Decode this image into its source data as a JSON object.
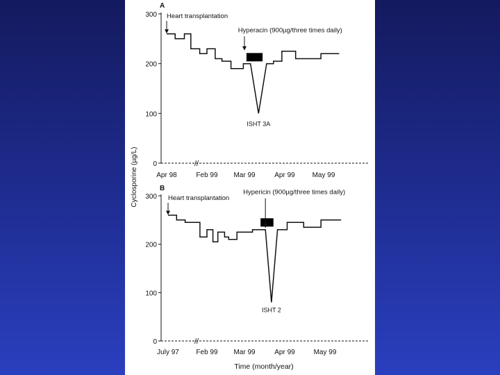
{
  "figure": {
    "y_axis_label": "Cyclosporine (µg/L)",
    "x_axis_label": "Time (month/year)"
  },
  "chart_data": [
    {
      "type": "line",
      "panel_label": "A",
      "categories": [
        "Apr 98",
        "Feb 99",
        "Mar 99",
        "Apr 99",
        "May 99"
      ],
      "axis_break": "//",
      "yticks": [
        0,
        100,
        200,
        300
      ],
      "ylim": [
        0,
        300
      ],
      "ylabel": "Cyclosporine (µg/L)",
      "xlabel": "Time (month/year)",
      "series": [
        {
          "points": [
            [
              0.0,
              260
            ],
            [
              0.21,
              260
            ],
            [
              0.21,
              250
            ],
            [
              0.44,
              250
            ],
            [
              0.44,
              260
            ],
            [
              0.6,
              260
            ],
            [
              0.6,
              230
            ],
            [
              0.82,
              230
            ],
            [
              0.82,
              220
            ],
            [
              1.0,
              220
            ],
            [
              1.0,
              230
            ],
            [
              1.22,
              230
            ],
            [
              1.22,
              210
            ],
            [
              1.4,
              210
            ],
            [
              1.4,
              205
            ],
            [
              1.64,
              205
            ],
            [
              1.64,
              190
            ],
            [
              1.97,
              190
            ],
            [
              1.97,
              200
            ],
            [
              2.15,
              200
            ],
            [
              2.35,
              100
            ],
            [
              2.55,
              200
            ],
            [
              2.72,
              200
            ],
            [
              2.72,
              205
            ],
            [
              2.93,
              205
            ],
            [
              2.93,
              225
            ],
            [
              3.28,
              225
            ],
            [
              3.28,
              210
            ],
            [
              3.93,
              210
            ],
            [
              3.93,
              220
            ],
            [
              4.4,
              220
            ]
          ]
        }
      ],
      "annotations": [
        {
          "text": "Heart transplantation",
          "at": [
            0.0,
            300
          ]
        },
        {
          "text": "Hyperacin (900µg/three times daily)",
          "at": [
            2.15,
            255
          ]
        },
        {
          "text": "ISHT 3A",
          "at": [
            2.35,
            80
          ]
        }
      ],
      "treatment_bar": {
        "x_start": 2.05,
        "x_end": 2.45,
        "y": 213
      }
    },
    {
      "type": "line",
      "panel_label": "B",
      "categories": [
        "July 97",
        "Feb 99",
        "Mar 99",
        "Apr 99",
        "May 99"
      ],
      "axis_break": "//",
      "yticks": [
        0,
        100,
        200,
        300
      ],
      "ylim": [
        0,
        300
      ],
      "ylabel": "Cyclosporine (µg/L)",
      "xlabel": "Time (month/year)",
      "series": [
        {
          "points": [
            [
              0.0,
              260
            ],
            [
              0.22,
              260
            ],
            [
              0.22,
              250
            ],
            [
              0.44,
              250
            ],
            [
              0.44,
              245
            ],
            [
              0.82,
              245
            ],
            [
              0.82,
              215
            ],
            [
              1.0,
              215
            ],
            [
              1.0,
              230
            ],
            [
              1.16,
              230
            ],
            [
              1.16,
              205
            ],
            [
              1.29,
              205
            ],
            [
              1.29,
              225
            ],
            [
              1.47,
              225
            ],
            [
              1.47,
              215
            ],
            [
              1.58,
              215
            ],
            [
              1.58,
              210
            ],
            [
              1.8,
              210
            ],
            [
              1.8,
              225
            ],
            [
              2.2,
              225
            ],
            [
              2.2,
              230
            ],
            [
              2.52,
              230
            ],
            [
              2.67,
              80
            ],
            [
              2.82,
              230
            ],
            [
              3.06,
              230
            ],
            [
              3.06,
              245
            ],
            [
              3.47,
              245
            ],
            [
              3.47,
              235
            ],
            [
              3.9,
              235
            ],
            [
              3.9,
              250
            ],
            [
              4.4,
              250
            ]
          ]
        }
      ],
      "annotations": [
        {
          "text": "Heart transplantation",
          "at": [
            0.0,
            300
          ]
        },
        {
          "text": "Hypericin (900µg/three times daily)",
          "at": [
            2.52,
            295
          ]
        },
        {
          "text": "ISHT 2",
          "at": [
            2.67,
            65
          ]
        }
      ],
      "treatment_bar": {
        "x_start": 2.4,
        "x_end": 2.72,
        "y": 245
      }
    }
  ]
}
